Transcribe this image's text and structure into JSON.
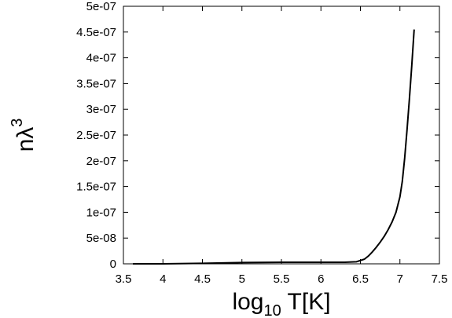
{
  "chart_data": {
    "type": "line",
    "xlabel": {
      "base": "log",
      "sub": "10",
      "rest": " T[K]"
    },
    "ylabel": {
      "base": "nλ",
      "sup": "3"
    },
    "xlim": [
      3.5,
      7.5
    ],
    "ylim": [
      0,
      5e-07
    ],
    "grid": false,
    "legend": "none",
    "x_ticks": [
      {
        "value": 3.5,
        "label": "3.5"
      },
      {
        "value": 4,
        "label": "4"
      },
      {
        "value": 4.5,
        "label": "4.5"
      },
      {
        "value": 5,
        "label": "5"
      },
      {
        "value": 5.5,
        "label": "5.5"
      },
      {
        "value": 6,
        "label": "6"
      },
      {
        "value": 6.5,
        "label": "6.5"
      },
      {
        "value": 7,
        "label": "7"
      },
      {
        "value": 7.5,
        "label": "7.5"
      }
    ],
    "y_ticks": [
      {
        "value": 0,
        "label": "0"
      },
      {
        "value": 5e-08,
        "label": "5e-08"
      },
      {
        "value": 1e-07,
        "label": "1e-07"
      },
      {
        "value": 1.5e-07,
        "label": "1.5e-07"
      },
      {
        "value": 2e-07,
        "label": "2e-07"
      },
      {
        "value": 2.5e-07,
        "label": "2.5e-07"
      },
      {
        "value": 3e-07,
        "label": "3e-07"
      },
      {
        "value": 3.5e-07,
        "label": "3.5e-07"
      },
      {
        "value": 4e-07,
        "label": "4e-07"
      },
      {
        "value": 4.5e-07,
        "label": "4.5e-07"
      },
      {
        "value": 5e-07,
        "label": "5e-07"
      }
    ],
    "series": [
      {
        "color": "#000000",
        "x": [
          3.62,
          4.0,
          4.5,
          5.0,
          5.5,
          6.0,
          6.3,
          6.45,
          6.55,
          6.6,
          6.65,
          6.7,
          6.75,
          6.8,
          6.85,
          6.9,
          6.95,
          7.0,
          7.03,
          7.06,
          7.09,
          7.12,
          7.15,
          7.18
        ],
        "y": [
          0,
          0,
          1e-09,
          2.5e-09,
          3e-09,
          3e-09,
          3e-09,
          4e-09,
          9e-09,
          1.5e-08,
          2.3e-08,
          3.2e-08,
          4.2e-08,
          5.3e-08,
          6.6e-08,
          8.1e-08,
          1e-07,
          1.3e-07,
          1.6e-07,
          2.05e-07,
          2.6e-07,
          3.2e-07,
          3.85e-07,
          4.55e-07
        ]
      }
    ]
  }
}
